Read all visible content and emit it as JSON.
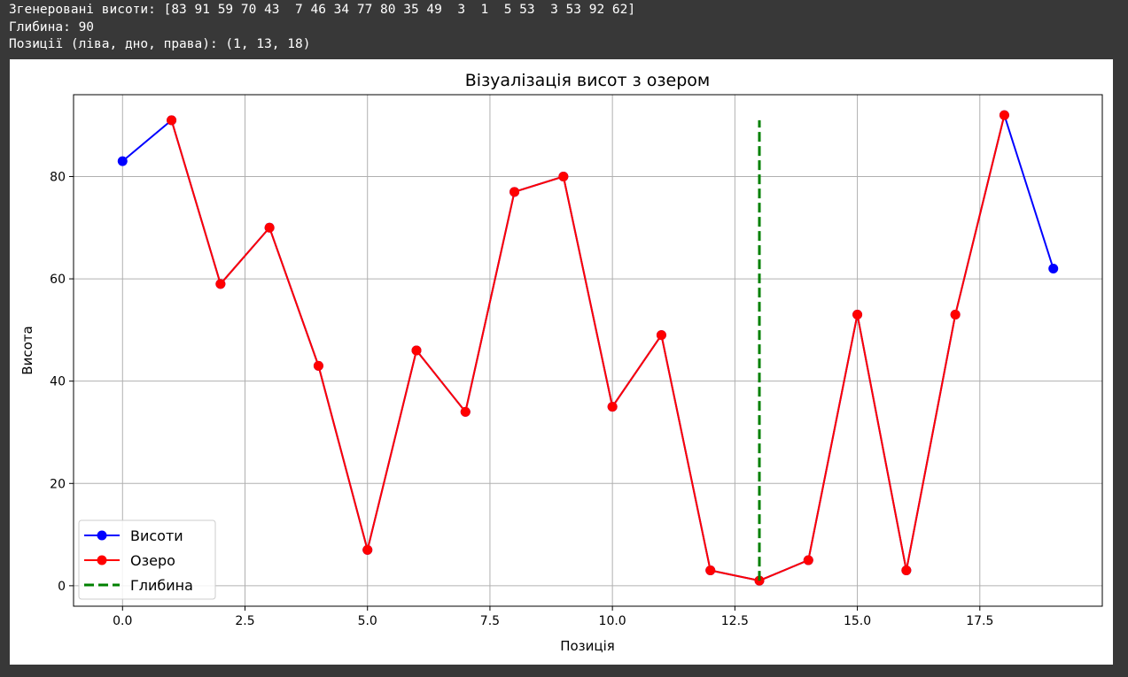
{
  "console": {
    "line1": "Згенеровані висоти: [83 91 59 70 43  7 46 34 77 80 35 49  3  1  5 53  3 53 92 62]",
    "line2": "Глибина: 90",
    "line3": "Позиції (ліва, дно, права): (1, 13, 18)"
  },
  "chart_data": {
    "type": "line",
    "title": "Візуалізація висот з озером",
    "xlabel": "Позиція",
    "ylabel": "Висота",
    "xlim": [
      -1,
      20
    ],
    "ylim": [
      -4,
      96
    ],
    "xticks": [
      0,
      2.5,
      5,
      7.5,
      10,
      12.5,
      15,
      17.5
    ],
    "xtick_labels": [
      "0.0",
      "2.5",
      "5.0",
      "7.5",
      "10.0",
      "12.5",
      "15.0",
      "17.5"
    ],
    "yticks": [
      0,
      20,
      40,
      60,
      80
    ],
    "ytick_labels": [
      "0",
      "20",
      "40",
      "60",
      "80"
    ],
    "grid": true,
    "legend_position": "bottom-left",
    "series": [
      {
        "name": "Висоти",
        "color": "#0000ff",
        "style": "solid-marker",
        "x": [
          0,
          1,
          2,
          3,
          4,
          5,
          6,
          7,
          8,
          9,
          10,
          11,
          12,
          13,
          14,
          15,
          16,
          17,
          18,
          19
        ],
        "y": [
          83,
          91,
          59,
          70,
          43,
          7,
          46,
          34,
          77,
          80,
          35,
          49,
          3,
          1,
          5,
          53,
          3,
          53,
          92,
          62
        ]
      },
      {
        "name": "Озеро",
        "color": "#ff0000",
        "style": "solid-marker",
        "x": [
          1,
          2,
          3,
          4,
          5,
          6,
          7,
          8,
          9,
          10,
          11,
          12,
          13,
          14,
          15,
          16,
          17,
          18
        ],
        "y": [
          91,
          59,
          70,
          43,
          7,
          46,
          34,
          77,
          80,
          35,
          49,
          3,
          1,
          5,
          53,
          3,
          53,
          92
        ]
      },
      {
        "name": "Глибина",
        "color": "#008000",
        "style": "dashed",
        "x": [
          13,
          13
        ],
        "y": [
          1,
          91
        ]
      }
    ]
  }
}
